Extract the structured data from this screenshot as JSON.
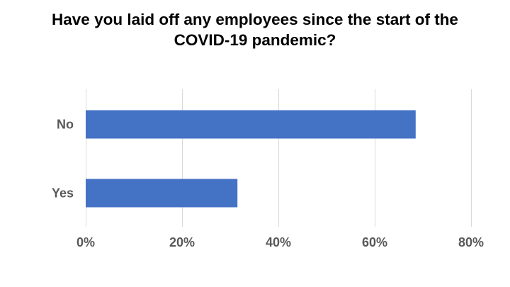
{
  "chart_data": {
    "type": "bar",
    "orientation": "horizontal",
    "title_lines": [
      "Have you laid off any employees since the start of the",
      "COVID-19 pandemic?"
    ],
    "categories": [
      "No",
      "Yes"
    ],
    "values": [
      68.5,
      31.5
    ],
    "value_unit": "%",
    "xlim": [
      0,
      80
    ],
    "x_ticks": [
      0,
      20,
      40,
      60,
      80
    ],
    "x_tick_labels": [
      "0%",
      "20%",
      "40%",
      "60%",
      "80%"
    ],
    "xlabel": "",
    "ylabel": "",
    "grid": true,
    "legend": "none",
    "colors": {
      "bar": "#4472c4",
      "grid": "#d9d9d9",
      "tick_text": "#595959",
      "title_text": "#000000"
    }
  }
}
